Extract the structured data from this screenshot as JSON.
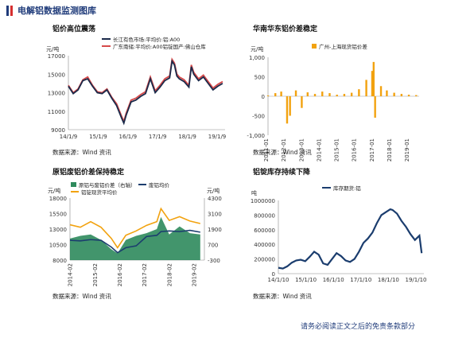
{
  "header": {
    "title": "电解铝数据监测图库"
  },
  "footer": {
    "disclaimer": "请务必阅读正文之后的免责条款部分"
  },
  "colors": {
    "accent": "#1f3b7a",
    "red": "#d62f2f",
    "orange": "#f2a20f",
    "green": "#2e8a5c",
    "navy": "#1b3d6e"
  },
  "chart_data": [
    {
      "type": "line",
      "title": "铝价高位震荡",
      "source": "数据来源：Wind 资讯",
      "ylabel": "元/吨",
      "ylim": [
        9000,
        17000
      ],
      "yticks": [
        "17000",
        "15000",
        "13000",
        "11000",
        "9000"
      ],
      "xticks": [
        "14/1/9",
        "15/1/9",
        "16/1/9",
        "17/1/9",
        "18/1/9",
        "19/1/9"
      ],
      "x_start": "2014-01-09",
      "x_end": "2019-05-31",
      "series": [
        {
          "name": "长江有色市场:平均价:铝:A00",
          "color": "#1b2a4a",
          "dates": [
            "2014-01",
            "2014-03",
            "2014-05",
            "2014-07",
            "2014-09",
            "2014-11",
            "2015-01",
            "2015-03",
            "2015-05",
            "2015-07",
            "2015-09",
            "2015-11",
            "2015-12",
            "2016-01",
            "2016-03",
            "2016-05",
            "2016-07",
            "2016-09",
            "2016-11",
            "2017-01",
            "2017-03",
            "2017-05",
            "2017-07",
            "2017-08",
            "2017-09",
            "2017-10",
            "2017-11",
            "2018-01",
            "2018-03",
            "2018-04",
            "2018-05",
            "2018-07",
            "2018-09",
            "2018-11",
            "2019-01",
            "2019-03",
            "2019-05"
          ],
          "values": [
            13700,
            12900,
            13300,
            14300,
            14500,
            13700,
            13000,
            12900,
            13300,
            12400,
            11600,
            10300,
            9700,
            10600,
            12000,
            12200,
            12600,
            12900,
            14500,
            13000,
            13600,
            14300,
            14600,
            16400,
            16000,
            14800,
            14500,
            14200,
            13600,
            15800,
            15000,
            14300,
            14700,
            14000,
            13300,
            13700,
            14000
          ]
        },
        {
          "name": "广东南储:平均价:A00铝锭国产:佛山仓库",
          "color": "#d64a4a",
          "dates": [
            "2014-01",
            "2014-03",
            "2014-05",
            "2014-07",
            "2014-09",
            "2014-11",
            "2015-01",
            "2015-03",
            "2015-05",
            "2015-07",
            "2015-09",
            "2015-11",
            "2015-12",
            "2016-01",
            "2016-03",
            "2016-05",
            "2016-07",
            "2016-09",
            "2016-11",
            "2017-01",
            "2017-03",
            "2017-05",
            "2017-07",
            "2017-08",
            "2017-09",
            "2017-10",
            "2017-11",
            "2018-01",
            "2018-03",
            "2018-04",
            "2018-05",
            "2018-07",
            "2018-09",
            "2018-11",
            "2019-01",
            "2019-03",
            "2019-05"
          ],
          "values": [
            13800,
            13000,
            13400,
            14400,
            14700,
            13800,
            13100,
            13000,
            13400,
            12500,
            11800,
            10500,
            9900,
            10800,
            12200,
            12400,
            12800,
            13100,
            14700,
            13200,
            13800,
            14500,
            14800,
            16600,
            16200,
            15000,
            14700,
            14400,
            13800,
            16000,
            15200,
            14500,
            14900,
            14200,
            13500,
            13900,
            14200
          ]
        }
      ]
    },
    {
      "type": "bar",
      "title": "华南华东铝价差稳定",
      "source": "数据来源：Wind 资讯",
      "ylabel": "元/吨",
      "ylim": [
        -1000,
        1000
      ],
      "yticks": [
        "1,000",
        "500",
        "0",
        "-500",
        "-1,000"
      ],
      "xticks": [
        "2011-01",
        "2012-01",
        "2013-01",
        "2014-01",
        "2015-01",
        "2016-01",
        "2017-01",
        "2018-01",
        "2019-01"
      ],
      "series": [
        {
          "name": "广州-上海现货铝价差",
          "color": "#f2a20f",
          "dates": [
            "2011-01",
            "2011-06",
            "2011-10",
            "2012-02",
            "2012-04",
            "2012-08",
            "2012-12",
            "2013-04",
            "2013-09",
            "2014-02",
            "2014-07",
            "2014-12",
            "2015-05",
            "2015-10",
            "2016-03",
            "2016-08",
            "2016-12",
            "2017-01",
            "2017-02",
            "2017-06",
            "2017-10",
            "2018-03",
            "2018-08",
            "2019-01",
            "2019-06"
          ],
          "values": [
            20,
            80,
            120,
            -700,
            -500,
            150,
            -300,
            100,
            60,
            120,
            80,
            40,
            60,
            90,
            180,
            420,
            650,
            880,
            -550,
            260,
            150,
            90,
            60,
            40,
            30
          ]
        }
      ]
    },
    {
      "type": "area",
      "title": "原铝废铝价差保持稳定",
      "source": "数据来源：Wind 资讯",
      "ylabel": "元/吨",
      "y2label": "元/吨",
      "ylim": [
        8000,
        18000
      ],
      "y2lim": [
        -300,
        4300
      ],
      "yticks": [
        "18000",
        "15500",
        "13000",
        "10500",
        "8000"
      ],
      "y2ticks": [
        "4300",
        "3100",
        "1900",
        "700",
        "-300"
      ],
      "xticks": [
        "2014-02",
        "2015-02",
        "2016-02",
        "2017-02",
        "2018-02",
        "2019-02"
      ],
      "series": [
        {
          "name": "原铝与废铝价差（右轴）",
          "color": "#2e8a5c",
          "axis": "right",
          "dates": [
            "2014-01",
            "2014-06",
            "2014-11",
            "2015-04",
            "2015-09",
            "2015-12",
            "2016-04",
            "2016-09",
            "2017-02",
            "2017-07",
            "2017-09",
            "2018-01",
            "2018-06",
            "2018-11",
            "2019-04"
          ],
          "values": [
            1300,
            1500,
            1600,
            1200,
            500,
            200,
            1200,
            1500,
            1700,
            2000,
            2900,
            1600,
            2200,
            1700,
            1600
          ]
        },
        {
          "name": "废铝均价",
          "color": "#1b3d6e",
          "axis": "left",
          "dates": [
            "2014-01",
            "2014-06",
            "2014-11",
            "2015-04",
            "2015-09",
            "2015-12",
            "2016-04",
            "2016-09",
            "2017-02",
            "2017-07",
            "2017-09",
            "2018-01",
            "2018-06",
            "2018-11",
            "2019-04"
          ],
          "values": [
            11200,
            11100,
            11300,
            11200,
            10100,
            9200,
            10000,
            10300,
            11800,
            12000,
            12600,
            12700,
            12600,
            12800,
            12500
          ]
        },
        {
          "name": "铝锭现货平均价",
          "color": "#f2a20f",
          "axis": "left",
          "dates": [
            "2014-01",
            "2014-06",
            "2014-11",
            "2015-04",
            "2015-09",
            "2015-12",
            "2016-04",
            "2016-09",
            "2017-02",
            "2017-07",
            "2017-09",
            "2018-01",
            "2018-06",
            "2018-11",
            "2019-04"
          ],
          "values": [
            13700,
            13300,
            14200,
            13300,
            11500,
            10000,
            12000,
            12700,
            13600,
            14200,
            16300,
            14400,
            15000,
            14300,
            13900
          ]
        }
      ]
    },
    {
      "type": "line",
      "title": "铝锭库存持续下降",
      "source": "数据来源：Wind 资讯",
      "ylabel": "吨",
      "ylim": [
        0,
        1000000
      ],
      "yticks": [
        "1000000",
        "800000",
        "600000",
        "400000",
        "200000",
        "0"
      ],
      "xticks": [
        "14/1/10",
        "15/1/10",
        "16/1/10",
        "17/1/10",
        "18/1/10",
        "19/1/10"
      ],
      "series": [
        {
          "name": "库存期货:铝",
          "color": "#1b3d6e",
          "dates": [
            "2014-01",
            "2014-03",
            "2014-05",
            "2014-07",
            "2014-09",
            "2014-11",
            "2015-01",
            "2015-03",
            "2015-05",
            "2015-07",
            "2015-09",
            "2015-11",
            "2016-01",
            "2016-03",
            "2016-05",
            "2016-07",
            "2016-09",
            "2016-11",
            "2017-01",
            "2017-03",
            "2017-05",
            "2017-07",
            "2017-09",
            "2017-11",
            "2018-01",
            "2018-03",
            "2018-04",
            "2018-06",
            "2018-08",
            "2018-10",
            "2018-12",
            "2019-02",
            "2019-04",
            "2019-05"
          ],
          "values": [
            80000,
            70000,
            100000,
            150000,
            180000,
            190000,
            170000,
            230000,
            300000,
            260000,
            140000,
            120000,
            200000,
            280000,
            240000,
            180000,
            160000,
            200000,
            300000,
            420000,
            480000,
            560000,
            690000,
            800000,
            840000,
            880000,
            870000,
            820000,
            720000,
            640000,
            540000,
            460000,
            520000,
            280000
          ]
        }
      ]
    }
  ]
}
